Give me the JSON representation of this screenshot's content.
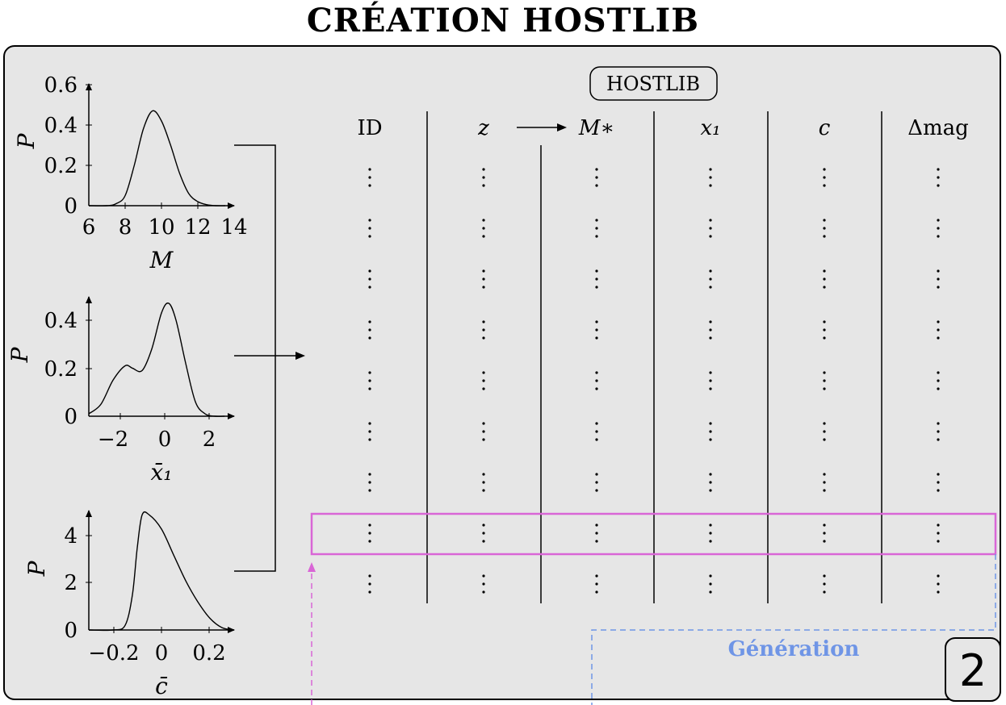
{
  "title": "CRÉATION HOSTLIB",
  "colors": {
    "panel_bg": "#e6e6e6",
    "highlight": "#d966d6",
    "generation": "#6f95e6"
  },
  "plots": [
    {
      "ylabel": "P",
      "xlabel": "M",
      "yticks": [
        "0.6",
        "0.4",
        "0.2",
        "0"
      ],
      "xticks": [
        "6",
        "8",
        "10",
        "12",
        "14"
      ]
    },
    {
      "ylabel": "P",
      "xlabel": "x̄₁",
      "yticks": [
        "0.4",
        "0.2",
        "0"
      ],
      "xticks": [
        "−2",
        "0",
        "2"
      ]
    },
    {
      "ylabel": "P",
      "xlabel": "c̄",
      "yticks": [
        "4",
        "2",
        "0"
      ],
      "xticks": [
        "−0.2",
        "0",
        "0.2"
      ]
    }
  ],
  "chart_data": [
    {
      "type": "line",
      "xlabel": "M",
      "ylabel": "P",
      "xlim": [
        6,
        14
      ],
      "ylim": [
        0,
        0.6
      ],
      "x": [
        6,
        7,
        7.5,
        8,
        8.5,
        9,
        9.5,
        10,
        10.5,
        11,
        11.5,
        12,
        12.5,
        13,
        13.5
      ],
      "values": [
        0,
        0,
        0.01,
        0.05,
        0.2,
        0.38,
        0.47,
        0.42,
        0.3,
        0.16,
        0.06,
        0.02,
        0.005,
        0,
        0
      ]
    },
    {
      "type": "line",
      "xlabel": "x̄₁",
      "ylabel": "P",
      "xlim": [
        -3,
        3
      ],
      "ylim": [
        0,
        0.45
      ],
      "x": [
        -3,
        -2.5,
        -2,
        -1.5,
        -1.2,
        -0.8,
        -0.4,
        0,
        0.3,
        0.6,
        1,
        1.4,
        1.8,
        2.2,
        2.6
      ],
      "values": [
        0.01,
        0.05,
        0.15,
        0.21,
        0.2,
        0.19,
        0.28,
        0.43,
        0.47,
        0.4,
        0.22,
        0.06,
        0.01,
        0,
        0
      ]
    },
    {
      "type": "line",
      "xlabel": "c̄",
      "ylabel": "P",
      "xlim": [
        -0.3,
        0.3
      ],
      "ylim": [
        0,
        5
      ],
      "x": [
        -0.3,
        -0.2,
        -0.15,
        -0.12,
        -0.1,
        -0.08,
        -0.05,
        0,
        0.05,
        0.1,
        0.15,
        0.2,
        0.25,
        0.3
      ],
      "values": [
        0,
        0,
        0.2,
        1.5,
        3.5,
        4.9,
        4.9,
        4.3,
        3.2,
        2.1,
        1.2,
        0.5,
        0.1,
        0
      ]
    }
  ],
  "table": {
    "badge": "HOSTLIB",
    "columns": [
      "ID",
      "z",
      "M∗",
      "x₁",
      "c",
      "Δmag"
    ],
    "rows": 9
  },
  "generation": "Génération",
  "step": "2"
}
